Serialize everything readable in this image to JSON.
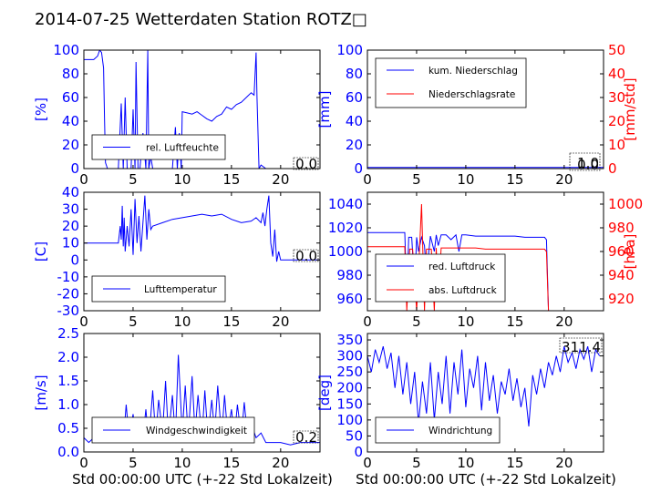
{
  "figure": {
    "title": "2014-07-25 Wetterdaten Station ROTZ",
    "title_glyph": "□",
    "xlabel": "Std 00:00:00 UTC (+-22 Std Lokalzeit)"
  },
  "chart_data": [
    {
      "type": "line",
      "panel": "humidity",
      "title": "",
      "xlabel": "",
      "ylabel": "[%]",
      "xlim": [
        0,
        24
      ],
      "ylim": [
        0,
        100
      ],
      "xticks": [
        0,
        5,
        10,
        15,
        20
      ],
      "yticks": [
        0,
        20,
        40,
        60,
        80,
        100
      ],
      "legend_loc": "lower-left",
      "last_value": "0.0",
      "series": [
        {
          "name": "rel. Luftfeuchte",
          "color": "#0000ff",
          "x": [
            0,
            0.5,
            1.0,
            1.4,
            1.6,
            1.8,
            2.0,
            2.1,
            2.2,
            2.4,
            2.6,
            3.0,
            3.5,
            3.8,
            4.0,
            4.2,
            4.4,
            4.6,
            4.8,
            5.0,
            5.2,
            5.3,
            5.5,
            5.7,
            6.0,
            6.3,
            6.5,
            6.6,
            6.8,
            7.0,
            7.5,
            8.0,
            8.5,
            9.0,
            9.3,
            9.5,
            9.7,
            9.9,
            10.0,
            10.5,
            11.0,
            11.5,
            12.0,
            12.5,
            13.0,
            13.5,
            14.0,
            14.5,
            15.0,
            15.5,
            16.0,
            16.5,
            17.0,
            17.3,
            17.5,
            17.6,
            17.8,
            18.0,
            18.5,
            19.0,
            20.0,
            22.0,
            24.0
          ],
          "y": [
            92,
            92,
            92,
            95,
            100,
            98,
            85,
            40,
            5,
            0,
            0,
            0,
            0,
            55,
            0,
            60,
            0,
            0,
            0,
            50,
            0,
            90,
            0,
            0,
            30,
            0,
            100,
            0,
            10,
            0,
            0,
            0,
            0,
            0,
            35,
            0,
            30,
            0,
            48,
            47,
            46,
            48,
            45,
            42,
            40,
            44,
            46,
            52,
            50,
            54,
            56,
            60,
            64,
            62,
            98,
            60,
            0,
            3,
            0,
            0,
            0,
            0,
            0
          ]
        }
      ]
    },
    {
      "type": "line",
      "panel": "precipitation",
      "title": "",
      "xlabel": "",
      "ylabel": "[mm]",
      "ylabel_right": "[mm/std]",
      "xlim": [
        0,
        24
      ],
      "ylim": [
        0,
        100
      ],
      "ylim_right": [
        0,
        50
      ],
      "xticks": [
        0,
        5,
        10,
        15,
        20
      ],
      "yticks": [
        0,
        20,
        40,
        60,
        80,
        100
      ],
      "yticks_right": [
        0,
        10,
        20,
        30,
        40,
        50
      ],
      "legend_loc": "upper-left",
      "last_values": [
        "1.0",
        "0.0"
      ],
      "series": [
        {
          "name": "kum. Niederschlag",
          "color": "#0000ff",
          "axis": "left",
          "x": [
            0,
            24
          ],
          "y": [
            1.0,
            1.0
          ]
        },
        {
          "name": "Niederschlagsrate",
          "color": "#ff0000",
          "axis": "right",
          "x": [
            0,
            24
          ],
          "y": [
            0,
            0
          ]
        }
      ]
    },
    {
      "type": "line",
      "panel": "temperature",
      "title": "",
      "xlabel": "",
      "ylabel": "[C]",
      "xlim": [
        0,
        24
      ],
      "ylim": [
        -30,
        40
      ],
      "xticks": [
        0,
        5,
        10,
        15,
        20
      ],
      "yticks": [
        -30,
        -20,
        -10,
        0,
        10,
        20,
        30,
        40
      ],
      "legend_loc": "lower-left",
      "last_value": "0.0",
      "series": [
        {
          "name": "Lufttemperatur",
          "color": "#0000ff",
          "x": [
            0,
            1.0,
            2.0,
            3.0,
            3.5,
            3.7,
            3.8,
            3.9,
            4.0,
            4.1,
            4.2,
            4.4,
            4.6,
            4.8,
            5.0,
            5.2,
            5.4,
            5.6,
            5.8,
            6.0,
            6.2,
            6.4,
            6.6,
            6.8,
            7.0,
            8.0,
            9.0,
            10.0,
            11.0,
            12.0,
            13.0,
            14.0,
            15.0,
            16.0,
            17.0,
            17.5,
            18.0,
            18.2,
            18.4,
            18.6,
            18.8,
            19.0,
            19.2,
            19.4,
            19.6,
            19.8,
            20.0,
            21.0,
            22.0,
            24.0
          ],
          "y": [
            10,
            10,
            10,
            10,
            10,
            20,
            12,
            32,
            8,
            25,
            5,
            20,
            8,
            30,
            3,
            36,
            10,
            26,
            5,
            22,
            38,
            12,
            30,
            18,
            20,
            22,
            24,
            25,
            26,
            27,
            26,
            27,
            24,
            22,
            23,
            25,
            22,
            28,
            20,
            30,
            38,
            10,
            2,
            18,
            -1,
            5,
            0,
            0,
            0,
            0
          ]
        }
      ]
    },
    {
      "type": "line",
      "panel": "pressure",
      "title": "",
      "xlabel": "",
      "ylabel": "",
      "ylabel_right": "[hPa]",
      "xlim": [
        0,
        24
      ],
      "ylim": [
        950,
        1050
      ],
      "ylim_right": [
        910,
        1010
      ],
      "xticks": [
        0,
        5,
        10,
        15,
        20
      ],
      "yticks": [
        960,
        980,
        1000,
        1020,
        1040
      ],
      "yticks_right": [
        920,
        940,
        960,
        980,
        1000
      ],
      "legend_loc": "lower-left",
      "last_value": "",
      "series": [
        {
          "name": "red. Luftdruck",
          "color": "#0000ff",
          "axis": "left",
          "x": [
            0,
            1.0,
            2.0,
            3.0,
            3.8,
            4.0,
            4.2,
            4.5,
            4.8,
            5.0,
            5.2,
            5.5,
            5.8,
            6.0,
            6.4,
            6.8,
            7.0,
            7.2,
            7.5,
            8.0,
            8.5,
            9.0,
            9.3,
            9.6,
            10.0,
            11.0,
            12.0,
            13.0,
            14.0,
            15.0,
            16.0,
            17.0,
            18.0,
            18.2,
            18.4
          ],
          "y": [
            1016,
            1016,
            1016,
            1016,
            1016,
            960,
            1012,
            1012,
            970,
            1012,
            1000,
            1012,
            1005,
            980,
            1013,
            1000,
            1014,
            1005,
            1014,
            1014,
            1010,
            1014,
            1000,
            1014,
            1014,
            1013,
            1013,
            1013,
            1013,
            1013,
            1012,
            1012,
            1012,
            1010,
            950
          ]
        },
        {
          "name": "abs. Luftdruck",
          "color": "#ff0000",
          "axis": "right",
          "x": [
            0,
            1.0,
            2.0,
            3.0,
            3.8,
            4.0,
            4.3,
            4.6,
            5.0,
            5.3,
            5.5,
            5.8,
            6.0,
            6.5,
            6.8,
            7.0,
            7.2,
            7.5,
            8.0,
            9.0,
            10.0,
            11.0,
            12.0,
            13.0,
            14.0,
            15.0,
            16.0,
            17.0,
            18.0,
            18.2,
            18.4
          ],
          "y": [
            964,
            964,
            964,
            964,
            964,
            910,
            962,
            962,
            910,
            962,
            1000,
            910,
            962,
            962,
            910,
            963,
            920,
            963,
            963,
            963,
            963,
            963,
            962,
            962,
            962,
            962,
            962,
            962,
            962,
            960,
            910
          ]
        }
      ]
    },
    {
      "type": "line",
      "panel": "windspeed",
      "title": "",
      "xlabel": "Std 00:00:00 UTC (+-22 Std Lokalzeit)",
      "ylabel": "[m/s]",
      "xlim": [
        0,
        24
      ],
      "ylim": [
        0.0,
        2.5
      ],
      "xticks": [
        0,
        5,
        10,
        15,
        20
      ],
      "yticks": [
        0.0,
        0.5,
        1.0,
        1.5,
        2.0,
        2.5
      ],
      "legend_loc": "lower-left",
      "last_value": "0.2",
      "series": [
        {
          "name": "Windgeschwindigkeit",
          "color": "#0000ff",
          "x": [
            0,
            0.5,
            1.0,
            1.5,
            2.0,
            2.5,
            3.0,
            3.5,
            4.0,
            4.3,
            4.6,
            5.0,
            5.3,
            5.6,
            6.0,
            6.3,
            6.6,
            7.0,
            7.3,
            7.6,
            8.0,
            8.3,
            8.6,
            9.0,
            9.3,
            9.6,
            10.0,
            10.3,
            10.6,
            11.0,
            11.3,
            11.6,
            12.0,
            12.3,
            12.6,
            13.0,
            13.3,
            13.6,
            14.0,
            14.3,
            14.6,
            15.0,
            15.3,
            15.6,
            16.0,
            16.3,
            16.6,
            17.0,
            17.5,
            18.0,
            18.5,
            19.0,
            20.0,
            21.0,
            22.0,
            23.0,
            24.0
          ],
          "y": [
            0.3,
            0.2,
            0.3,
            0.25,
            0.3,
            0.2,
            0.3,
            0.5,
            0.2,
            1.0,
            0.3,
            0.8,
            0.2,
            0.6,
            0.3,
            0.9,
            0.2,
            1.3,
            0.3,
            1.1,
            0.4,
            1.5,
            0.3,
            1.2,
            0.3,
            2.05,
            0.4,
            1.4,
            0.3,
            1.6,
            0.4,
            1.2,
            0.3,
            1.3,
            0.3,
            1.1,
            0.4,
            1.4,
            0.3,
            1.2,
            0.4,
            0.9,
            0.3,
            1.0,
            0.3,
            1.05,
            0.4,
            0.6,
            0.3,
            0.4,
            0.2,
            0.2,
            0.2,
            0.15,
            0.2,
            0.2,
            0.2
          ]
        }
      ]
    },
    {
      "type": "line",
      "panel": "winddirection",
      "title": "",
      "xlabel": "Std 00:00:00 UTC (+-22 Std Lokalzeit)",
      "ylabel": "[deg]",
      "xlim": [
        0,
        24
      ],
      "ylim": [
        0,
        370
      ],
      "xticks": [
        0,
        5,
        10,
        15,
        20
      ],
      "yticks": [
        0,
        50,
        100,
        150,
        200,
        250,
        300,
        350
      ],
      "legend_loc": "lower-left",
      "last_value": "311.4",
      "series": [
        {
          "name": "Windrichtung",
          "color": "#0000ff",
          "x": [
            0,
            0.4,
            0.8,
            1.2,
            1.6,
            2.0,
            2.4,
            2.8,
            3.2,
            3.6,
            4.0,
            4.4,
            4.8,
            5.2,
            5.6,
            6.0,
            6.4,
            6.8,
            7.2,
            7.6,
            8.0,
            8.4,
            8.8,
            9.2,
            9.6,
            10.0,
            10.4,
            10.8,
            11.2,
            11.6,
            12.0,
            12.4,
            12.8,
            13.2,
            13.6,
            14.0,
            14.4,
            14.8,
            15.2,
            15.6,
            16.0,
            16.4,
            16.8,
            17.2,
            17.6,
            18.0,
            18.4,
            18.8,
            19.2,
            19.6,
            20.0,
            20.4,
            20.8,
            21.2,
            21.6,
            22.0,
            22.4,
            22.8,
            23.2,
            23.6
          ],
          "y": [
            300,
            250,
            320,
            280,
            330,
            260,
            310,
            200,
            300,
            180,
            280,
            150,
            250,
            90,
            220,
            120,
            280,
            100,
            250,
            150,
            300,
            120,
            280,
            180,
            320,
            140,
            260,
            200,
            300,
            130,
            280,
            160,
            240,
            120,
            220,
            180,
            260,
            160,
            230,
            140,
            200,
            80,
            240,
            180,
            260,
            200,
            280,
            240,
            300,
            250,
            330,
            280,
            310,
            260,
            320,
            290,
            330,
            250,
            320,
            300
          ]
        }
      ]
    }
  ]
}
